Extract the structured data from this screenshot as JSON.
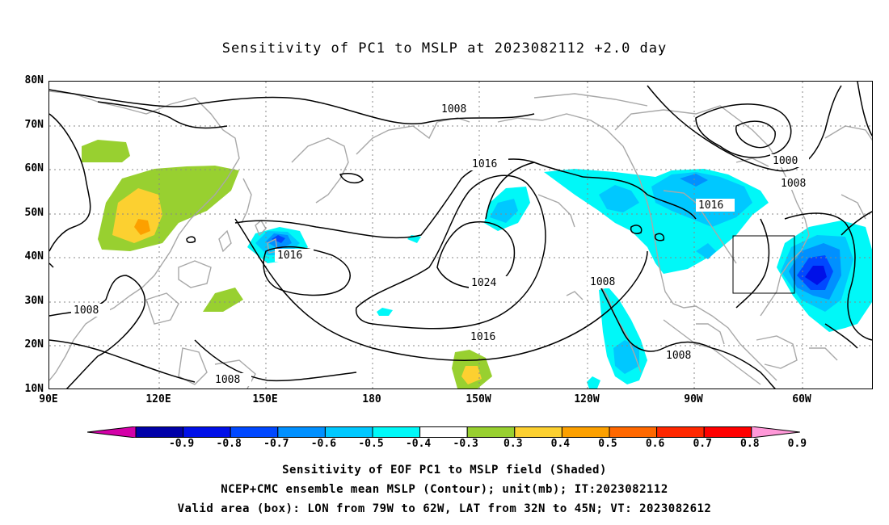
{
  "title": "Sensitivity of PC1 to MSLP at 2023082112 +2.0 day",
  "lat_labels": [
    "80N",
    "70N",
    "60N",
    "50N",
    "40N",
    "30N",
    "20N",
    "10N"
  ],
  "lon_labels": [
    "90E",
    "120E",
    "150E",
    "180",
    "150W",
    "120W",
    "90W",
    "60W"
  ],
  "contour_labels": {
    "c1008_north": "1008",
    "c1000": "1000",
    "c1008_ne": "1008",
    "c1016_n": "1016",
    "c1016_na": "1016",
    "c1016_w": "1016",
    "c1024": "1024",
    "c1008_mex": "1008",
    "c1008_w": "1008",
    "c1016_s": "1016",
    "c1008_gulf": "1008",
    "c1008_sw": "1008"
  },
  "colorbar": {
    "labels": [
      "-0.9",
      "-0.8",
      "-0.7",
      "-0.6",
      "-0.5",
      "-0.4",
      "-0.3",
      "0.3",
      "0.4",
      "0.5",
      "0.6",
      "0.7",
      "0.8",
      "0.9"
    ],
    "colors": [
      "#d400a8",
      "#0000a8",
      "#0010e8",
      "#0048ff",
      "#0090ff",
      "#00c8ff",
      "#00f8f8",
      "#ffffff",
      "#98d030",
      "#fcd030",
      "#fca000",
      "#ff6800",
      "#ff2800",
      "#ff0000",
      "#ff98d8"
    ]
  },
  "footer": {
    "line1": "Sensitivity of EOF PC1 to MSLP field (Shaded)",
    "line2": "NCEP+CMC ensemble mean MSLP (Contour); unit(mb); IT:2023082112",
    "line3": "Valid area (box): LON from 79W to 62W, LAT from 32N to 45N; VT: 2023082612"
  }
}
